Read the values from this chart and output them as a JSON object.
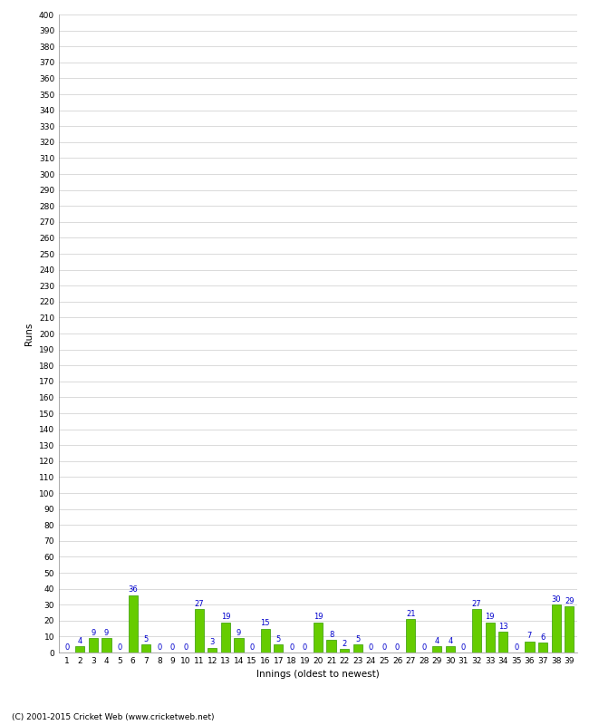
{
  "innings": [
    1,
    2,
    3,
    4,
    5,
    6,
    7,
    8,
    9,
    10,
    11,
    12,
    13,
    14,
    15,
    16,
    17,
    18,
    19,
    20,
    21,
    22,
    23,
    24,
    25,
    26,
    27,
    28,
    29,
    30,
    31,
    32,
    33,
    34,
    35,
    36,
    37,
    38,
    39
  ],
  "values": [
    0,
    4,
    9,
    9,
    0,
    36,
    5,
    0,
    0,
    0,
    27,
    3,
    19,
    9,
    0,
    15,
    5,
    0,
    0,
    19,
    8,
    2,
    5,
    0,
    0,
    0,
    21,
    0,
    4,
    4,
    0,
    27,
    19,
    13,
    0,
    7,
    6,
    30,
    29
  ],
  "bar_color": "#66cc00",
  "bar_edge_color": "#339900",
  "value_color": "#0000cc",
  "ylabel": "Runs",
  "xlabel": "Innings (oldest to newest)",
  "ylim": [
    0,
    400
  ],
  "ytick_step": 10,
  "background_color": "#ffffff",
  "grid_color": "#cccccc",
  "font_size_ticks": 6.5,
  "font_size_labels": 7.5,
  "font_size_values": 6,
  "copyright": "(C) 2001-2015 Cricket Web (www.cricketweb.net)"
}
